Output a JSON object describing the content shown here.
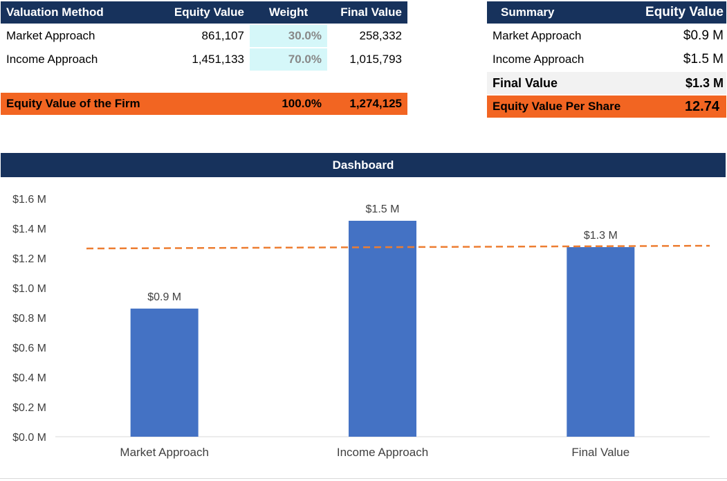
{
  "valuation_table": {
    "headers": [
      "Valuation Method",
      "Equity Value",
      "Weight",
      "Final  Value"
    ],
    "rows": [
      {
        "method": "Market Approach",
        "equity": "861,107",
        "weight": "30.0%",
        "final": "258,332"
      },
      {
        "method": "Income Approach",
        "equity": "1,451,133",
        "weight": "70.0%",
        "final": "1,015,793"
      }
    ],
    "total": {
      "label": "Equity Value of the Firm",
      "weight": "100.0%",
      "final": "1,274,125"
    }
  },
  "summary_table": {
    "headers": [
      "Summary",
      "Equity Value"
    ],
    "rows": [
      {
        "label": "Market Approach",
        "value": "$0.9 M"
      },
      {
        "label": "Income Approach",
        "value": "$1.5 M"
      }
    ],
    "final": {
      "label": "Final  Value",
      "value": "$1.3 M"
    },
    "per_share": {
      "label": "Equity Value Per Share",
      "value": "12.74"
    }
  },
  "dashboard": {
    "title": "Dashboard"
  },
  "colors": {
    "navy": "#17325c",
    "orange": "#f26522",
    "bar": "#4472c4",
    "weight_fill": "#d5f7f9"
  },
  "chart_data": {
    "type": "bar",
    "categories": [
      "Market Approach",
      "Income Approach",
      "Final  Value"
    ],
    "values": [
      0.861107,
      1.451133,
      1.274125
    ],
    "data_labels": [
      "$0.9 M",
      "$1.5 M",
      "$1.3 M"
    ],
    "reference_line": {
      "value": 1.274125,
      "style": "dashed",
      "color": "#ed7d31"
    },
    "y_ticks": [
      0,
      0.2,
      0.4,
      0.6,
      0.8,
      1.0,
      1.2,
      1.4,
      1.6
    ],
    "y_tick_labels": [
      "$0.0 M",
      "$0.2 M",
      "$0.4 M",
      "$0.6 M",
      "$0.8 M",
      "$1.0 M",
      "$1.2 M",
      "$1.4 M",
      "$1.6 M"
    ],
    "ylim": [
      0,
      1.6
    ],
    "title": "",
    "xlabel": "",
    "ylabel": "",
    "grid": false,
    "legend": "none"
  }
}
